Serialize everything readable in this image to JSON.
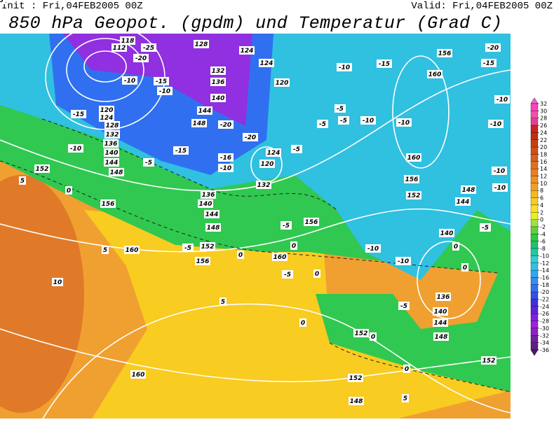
{
  "header": {
    "init": "Init : Fri,04FEB2005 00Z",
    "valid": "Valid: Fri,04FEB2005 00Z",
    "title": "850 hPa Geopot. (gpdm) und Temperatur (Grad C)"
  },
  "contour_labels": [
    124,
    128,
    124,
    120,
    132,
    136,
    140,
    144,
    148,
    156,
    160,
    160,
    156,
    152,
    148,
    144,
    140,
    136,
    140,
    144,
    148,
    152,
    152,
    152,
    148,
    160,
    160,
    156,
    160,
    156,
    152,
    148,
    144,
    140,
    136,
    124,
    120,
    132,
    152,
    156,
    148,
    144,
    140,
    136,
    132,
    128,
    124,
    120,
    112,
    118,
    -20,
    -15,
    -10,
    -10,
    -10,
    -10,
    -5,
    0,
    0,
    -10,
    -10,
    -5,
    -15,
    -10,
    -10,
    -5,
    -5,
    -5,
    -5,
    -10,
    -20,
    -20,
    -16,
    -10,
    -15,
    -5,
    -10,
    -15,
    -5,
    0,
    0,
    -5,
    -5,
    0,
    5,
    5,
    0,
    10,
    5,
    0,
    0,
    0,
    5,
    -25,
    -20,
    -15,
    -10,
    -10,
    -5
  ],
  "colorbar": {
    "levels": [
      32,
      30,
      28,
      26,
      24,
      22,
      20,
      18,
      16,
      14,
      12,
      10,
      8,
      6,
      4,
      2,
      0,
      -2,
      -4,
      -6,
      -8,
      -10,
      -12,
      -14,
      -16,
      -18,
      -20,
      -22,
      -24,
      -26,
      -28,
      -30,
      -32,
      -34,
      -36
    ],
    "colors": [
      "#ff60d0",
      "#ff40c0",
      "#f050b0",
      "#e04090",
      "#d02020",
      "#c03010",
      "#c84010",
      "#d05010",
      "#d86020",
      "#e07020",
      "#e88020",
      "#f09020",
      "#f0a020",
      "#f5b820",
      "#f8cc20",
      "#fae020",
      "#e8f020",
      "#a0e040",
      "#60d040",
      "#30c840",
      "#20c070",
      "#20c8a0",
      "#30d0d0",
      "#30c0e8",
      "#30a8f0",
      "#3090f0",
      "#3070f0",
      "#3050e8",
      "#4030e0",
      "#6020e0",
      "#8020e0",
      "#a020e0",
      "#9020c0",
      "#7020a0",
      "#602080",
      "#501870"
    ]
  }
}
